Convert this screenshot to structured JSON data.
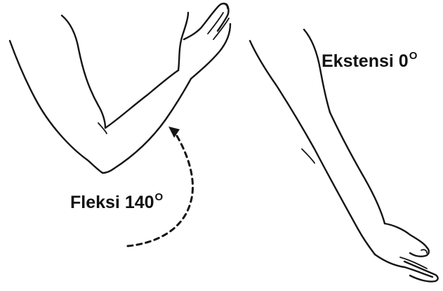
{
  "labels": {
    "extension": {
      "text": "Ekstensi 0",
      "degree_symbol": "O"
    },
    "flexion": {
      "text": "Fleksi 140",
      "degree_symbol": "O"
    }
  },
  "colors": {
    "ink": "#151515",
    "background": "#ffffff"
  },
  "icons": {
    "arrow": "dashed-curved-arrow-up"
  }
}
